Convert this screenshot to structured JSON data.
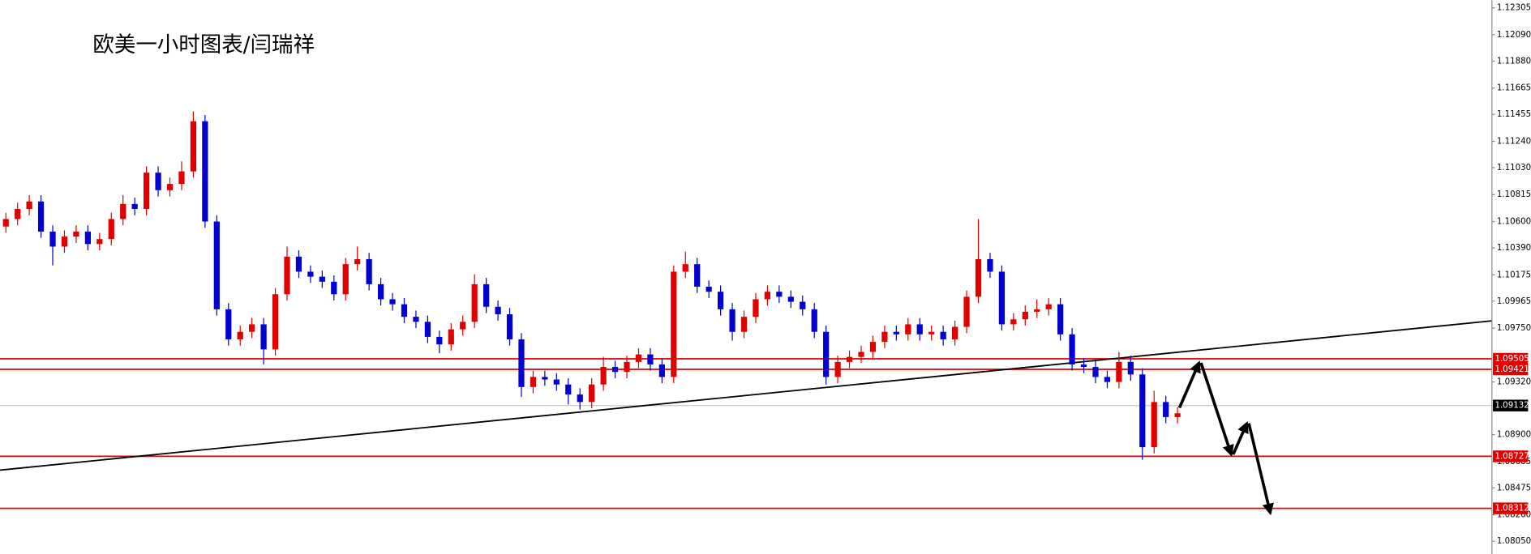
{
  "chart_data": {
    "type": "candlestick",
    "title": "欧美一小时图表/闫瑞祥",
    "ylim": [
      1.07948,
      1.12367
    ],
    "yticks": [
      1.12305,
      {
        "value": 1.1209,
        "label": "1.12090"
      },
      {
        "value": 1.1188,
        "label": "1.11880"
      },
      1.11665,
      1.11455,
      {
        "value": 1.1124,
        "label": "1.11240"
      },
      {
        "value": 1.1103,
        "label": "1.11030"
      },
      1.10815,
      {
        "value": 1.106,
        "label": "1.10600"
      },
      {
        "value": 1.1039,
        "label": "1.10390"
      },
      1.10175,
      1.09965,
      {
        "value": 1.0975,
        "label": "1.09750"
      },
      {
        "value": 1.0932,
        "label": "1.09320"
      },
      {
        "value": 1.089,
        "label": "1.08900"
      },
      1.08685,
      1.08475,
      {
        "value": 1.0826,
        "label": "1.08260"
      },
      {
        "value": 1.0805,
        "label": "1.08050"
      }
    ],
    "up_color": "#e00000",
    "down_color": "#0000d0",
    "open": [
      1.1056,
      1.1062,
      1.107,
      1.1076,
      1.1052,
      1.104,
      1.1048,
      1.1052,
      1.1042,
      1.1046,
      1.1062,
      1.1074,
      1.107,
      1.1099,
      1.1085,
      1.109,
      1.11,
      1.114,
      1.106,
      1.099,
      1.0966,
      1.0972,
      1.0978,
      1.0958,
      1.1002,
      1.1032,
      1.102,
      1.1016,
      1.1012,
      1.1002,
      1.1026,
      1.103,
      1.101,
      1.0998,
      1.0994,
      1.0984,
      1.098,
      1.0968,
      1.0962,
      1.0974,
      1.098,
      1.101,
      1.0992,
      1.0986,
      1.0966,
      1.0928,
      1.0936,
      1.0934,
      1.093,
      1.0922,
      1.0916,
      1.093,
      1.0944,
      1.094,
      1.0948,
      1.0954,
      1.0946,
      1.0936,
      1.102,
      1.1026,
      1.1008,
      1.1004,
      1.099,
      1.0972,
      1.0984,
      1.0998,
      1.1004,
      1.1,
      1.0996,
      1.099,
      1.0972,
      1.0936,
      1.0948,
      1.0952,
      1.0956,
      1.0964,
      1.0972,
      1.097,
      1.0978,
      1.097,
      1.0972,
      1.0966,
      1.0976,
      1.1,
      1.103,
      1.102,
      1.0978,
      1.0982,
      1.0988,
      1.099,
      1.0994,
      1.097,
      1.0946,
      1.0944,
      1.0936,
      1.0932,
      1.0948,
      1.0938,
      1.088,
      1.0916,
      1.0904
    ],
    "high": [
      1.1067,
      1.1075,
      1.1081,
      1.1081,
      1.1057,
      1.1053,
      1.1057,
      1.1057,
      1.1051,
      1.1067,
      1.1081,
      1.1079,
      1.1104,
      1.1104,
      1.1095,
      1.1108,
      1.1148,
      1.1145,
      1.1065,
      1.0995,
      1.0977,
      1.0983,
      1.0983,
      1.1007,
      1.104,
      1.1037,
      1.1025,
      1.1021,
      1.1017,
      1.1031,
      1.104,
      1.1035,
      1.1015,
      1.1003,
      1.0999,
      1.0989,
      1.0985,
      1.0973,
      1.0979,
      1.0985,
      1.1018,
      1.1015,
      1.0997,
      1.0991,
      1.0971,
      1.0941,
      1.0941,
      1.0939,
      1.0935,
      1.0927,
      1.0935,
      1.0952,
      1.0949,
      1.0953,
      1.0959,
      1.0959,
      1.0951,
      1.1025,
      1.1036,
      1.1031,
      1.1013,
      1.1009,
      1.0995,
      1.0989,
      1.1003,
      1.1009,
      1.1009,
      1.1005,
      1.1001,
      1.0995,
      1.0977,
      1.0953,
      1.0957,
      1.0961,
      1.0969,
      1.0977,
      1.0977,
      1.0983,
      1.0983,
      1.0977,
      1.0977,
      1.0981,
      1.1005,
      1.1062,
      1.1035,
      1.1025,
      1.0987,
      1.0993,
      1.0998,
      1.0999,
      1.0999,
      1.0975,
      1.0951,
      1.0949,
      1.0941,
      1.0956,
      1.0953,
      1.0943,
      1.0925,
      1.0921,
      1.0912
    ],
    "low": [
      1.1051,
      1.1057,
      1.1065,
      1.1047,
      1.1025,
      1.1035,
      1.1043,
      1.1037,
      1.1037,
      1.1041,
      1.1057,
      1.1065,
      1.1065,
      1.108,
      1.108,
      1.1085,
      1.1095,
      1.1055,
      1.0985,
      1.0961,
      1.0961,
      1.0967,
      1.0946,
      1.0953,
      1.0997,
      1.1015,
      1.1011,
      1.1007,
      1.0997,
      1.0997,
      1.1021,
      1.1005,
      1.0993,
      1.0989,
      1.0979,
      1.0975,
      1.0963,
      1.0955,
      1.0957,
      1.0969,
      1.0975,
      1.0987,
      1.0981,
      1.0961,
      1.092,
      1.0923,
      1.0929,
      1.0925,
      1.0914,
      1.091,
      1.0911,
      1.0925,
      1.0935,
      1.0935,
      1.0943,
      1.0941,
      1.0931,
      1.0931,
      1.1015,
      1.1003,
      1.0999,
      1.0985,
      1.0965,
      1.0967,
      1.0979,
      1.0993,
      1.0995,
      1.0991,
      1.0985,
      1.0967,
      1.093,
      1.0931,
      1.0943,
      1.0947,
      1.0951,
      1.0959,
      1.0965,
      1.0965,
      1.0965,
      1.0965,
      1.0961,
      1.0961,
      1.0971,
      1.0995,
      1.1015,
      1.0973,
      1.0973,
      1.0977,
      1.0983,
      1.0985,
      1.0965,
      1.0941,
      1.0939,
      1.0931,
      1.0927,
      1.0927,
      1.0933,
      1.087,
      1.0875,
      1.0899,
      1.0899
    ],
    "close": [
      1.1062,
      1.107,
      1.1076,
      1.1052,
      1.104,
      1.1048,
      1.1052,
      1.1042,
      1.1046,
      1.1062,
      1.1074,
      1.107,
      1.1099,
      1.1085,
      1.109,
      1.11,
      1.114,
      1.106,
      1.099,
      1.0966,
      1.0972,
      1.0978,
      1.0958,
      1.1002,
      1.1032,
      1.102,
      1.1016,
      1.1012,
      1.1002,
      1.1026,
      1.103,
      1.101,
      1.0998,
      1.0994,
      1.0984,
      1.098,
      1.0968,
      1.0962,
      1.0974,
      1.098,
      1.101,
      1.0992,
      1.0986,
      1.0966,
      1.0928,
      1.0936,
      1.0934,
      1.093,
      1.0922,
      1.0916,
      1.093,
      1.0944,
      1.094,
      1.0948,
      1.0954,
      1.0946,
      1.0936,
      1.102,
      1.1026,
      1.1008,
      1.1004,
      1.099,
      1.0972,
      1.0984,
      1.0998,
      1.1004,
      1.1,
      1.0996,
      1.099,
      1.0972,
      1.0936,
      1.0948,
      1.0952,
      1.0956,
      1.0964,
      1.0972,
      1.097,
      1.0978,
      1.097,
      1.0972,
      1.0966,
      1.0976,
      1.1,
      1.103,
      1.102,
      1.0978,
      1.0982,
      1.0988,
      1.099,
      1.0994,
      1.097,
      1.0946,
      1.0944,
      1.0936,
      1.0932,
      1.0948,
      1.0938,
      1.088,
      1.0916,
      1.0904,
      1.0907
    ],
    "levels": [
      1.09505,
      1.09421,
      1.08727,
      1.08312
    ],
    "level_color": "#e00000",
    "current_price": 1.09132,
    "trendline": {
      "start": 1.08617,
      "end": 1.09808
    }
  }
}
